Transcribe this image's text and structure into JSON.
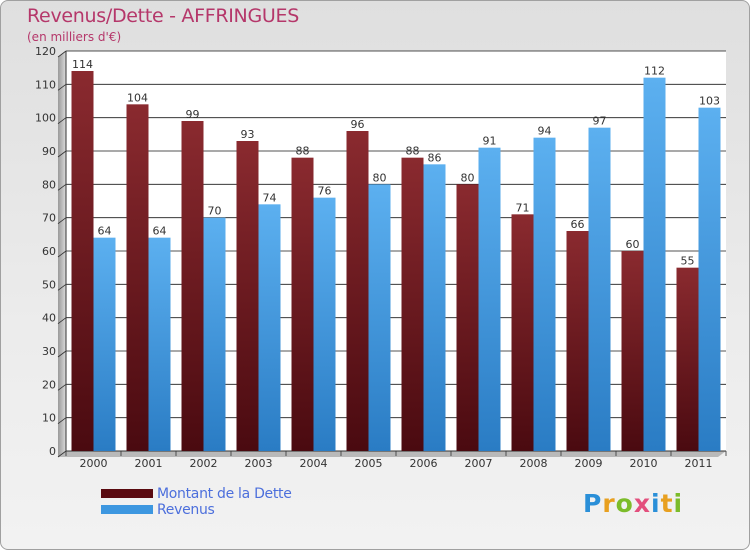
{
  "header": {
    "title": "Revenus/Dette - AFFRINGUES",
    "subtitle": "(en milliers d'€)"
  },
  "chart_data": {
    "type": "bar",
    "title": "Revenus/Dette - AFFRINGUES",
    "subtitle": "(en milliers d'€)",
    "categories": [
      "2000",
      "2001",
      "2002",
      "2003",
      "2004",
      "2005",
      "2006",
      "2007",
      "2008",
      "2009",
      "2010",
      "2011"
    ],
    "series": [
      {
        "name": "Montant de la Dette",
        "values": [
          114,
          104,
          99,
          93,
          88,
          96,
          88,
          80,
          71,
          66,
          60,
          55
        ],
        "color": "#7a1e22"
      },
      {
        "name": "Revenus",
        "values": [
          64,
          64,
          70,
          74,
          76,
          80,
          86,
          91,
          94,
          97,
          112,
          103
        ],
        "color": "#4aa0e6"
      }
    ],
    "ylim": [
      0,
      120
    ],
    "yticks": [
      0,
      10,
      20,
      30,
      40,
      50,
      60,
      70,
      80,
      90,
      100,
      110,
      120
    ],
    "grid": true,
    "legend": "bottom-left",
    "xlabel": "",
    "ylabel": ""
  },
  "legend": {
    "items": [
      {
        "label": "Montant de la Dette",
        "color": "#5a0a10"
      },
      {
        "label": "Revenus",
        "color": "#3d97e0"
      }
    ]
  },
  "logo": {
    "letters": [
      "P",
      "r",
      "o",
      "x",
      "i",
      "t",
      "i"
    ],
    "colors": [
      "#2a8fd8",
      "#e8a020",
      "#7cbc2a",
      "#e34f7d",
      "#2a8fd8",
      "#e8a020",
      "#7cbc2a"
    ]
  }
}
